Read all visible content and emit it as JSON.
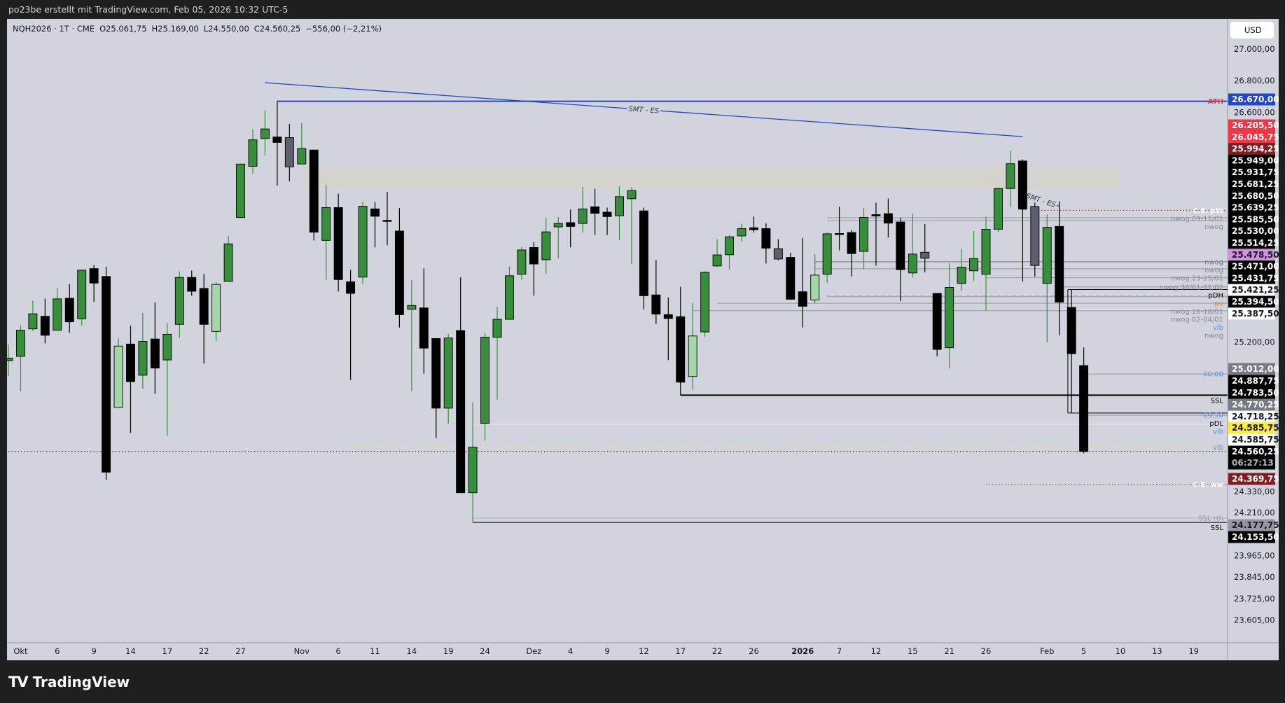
{
  "header": {
    "credit": "po23be erstellt mit TradingView.com, Feb 05, 2026 10:32 UTC-5"
  },
  "legend": {
    "symbol": "NQH2026 · 1T · CME",
    "open": "O25.061,75",
    "high": "H25.169,00",
    "low": "L24.550,00",
    "close": "C24.560,25",
    "change": "−556,00 (−2,21%)"
  },
  "price_axis": {
    "currency": "USD",
    "ticks": [
      {
        "label": "27.000,00",
        "price": 27000
      },
      {
        "label": "26.800,00",
        "price": 26800
      },
      {
        "label": "26.600,00",
        "price": 26600
      },
      {
        "label": "25.200,00",
        "price": 25200
      },
      {
        "label": "24.330,00",
        "price": 24330
      },
      {
        "label": "24.210,00",
        "price": 24210
      },
      {
        "label": "23.965,00",
        "price": 23965
      },
      {
        "label": "23.845,00",
        "price": 23845
      },
      {
        "label": "23.725,00",
        "price": 23725
      },
      {
        "label": "23.605,00",
        "price": 23605
      }
    ],
    "tags": [
      {
        "label": "26.670,00",
        "bg": "#2447c8",
        "fg": "#ffffff"
      },
      {
        "label": "26.205,50",
        "bg": "#f23645",
        "fg": "#ffffff"
      },
      {
        "label": "26.045,75",
        "bg": "#f23645",
        "fg": "#ffffff"
      },
      {
        "label": "25.994,25",
        "bg": "#7f1d22",
        "fg": "#ffffff"
      },
      {
        "label": "25.949,00",
        "bg": "#000000",
        "fg": "#ffffff"
      },
      {
        "label": "25.931,75",
        "bg": "#000000",
        "fg": "#ffffff"
      },
      {
        "label": "25.681,25",
        "bg": "#000000",
        "fg": "#ffffff"
      },
      {
        "label": "25.680,50",
        "bg": "#000000",
        "fg": "#ffffff"
      },
      {
        "label": "25.639,25",
        "bg": "#000000",
        "fg": "#ffffff"
      },
      {
        "label": "25.585,50",
        "bg": "#000000",
        "fg": "#ffffff"
      },
      {
        "label": "25.530,00",
        "bg": "#000000",
        "fg": "#ffffff"
      },
      {
        "label": "25.514,25",
        "bg": "#000000",
        "fg": "#ffffff"
      },
      {
        "label": "25.478,50",
        "bg": "#ce93d8",
        "fg": "#131722"
      },
      {
        "label": "25.471,00",
        "bg": "#000000",
        "fg": "#ffffff"
      },
      {
        "label": "25.431,75",
        "bg": "#000000",
        "fg": "#ffffff"
      },
      {
        "label": "25.421,25",
        "bg": "#ffffff",
        "fg": "#131722"
      },
      {
        "label": "25.394,50",
        "bg": "#000000",
        "fg": "#ffffff"
      },
      {
        "label": "25.387,50",
        "bg": "#ffffff",
        "fg": "#131722"
      },
      {
        "label": "25.012,00",
        "bg": "#787b86",
        "fg": "#ffffff"
      },
      {
        "label": "24.887,75",
        "bg": "#000000",
        "fg": "#ffffff"
      },
      {
        "label": "24.783,50",
        "bg": "#000000",
        "fg": "#ffffff"
      },
      {
        "label": "24.770,25",
        "bg": "#787b86",
        "fg": "#ffffff"
      },
      {
        "label": "24.718,25",
        "bg": "#ffffff",
        "fg": "#131722"
      },
      {
        "label": "24.585,75",
        "bg": "#ffeb3b",
        "fg": "#131722"
      },
      {
        "label": "24.585,75",
        "bg": "#ffffff",
        "fg": "#131722"
      },
      {
        "label": "24.560,25",
        "bg": "#000000",
        "fg": "#ffffff"
      },
      {
        "label": "24.369,75",
        "bg": "#7f1d22",
        "fg": "#ffffff"
      },
      {
        "label": "24.177,75",
        "bg": "#9598a1",
        "fg": "#131722"
      },
      {
        "label": "24.153,50",
        "bg": "#000000",
        "fg": "#ffffff"
      }
    ],
    "countdown": "06:27:13"
  },
  "time_axis": {
    "ticks": [
      {
        "label": "Okt",
        "bar": 1
      },
      {
        "label": "6",
        "bar": 4
      },
      {
        "label": "9",
        "bar": 7
      },
      {
        "label": "14",
        "bar": 10
      },
      {
        "label": "17",
        "bar": 13
      },
      {
        "label": "22",
        "bar": 16
      },
      {
        "label": "27",
        "bar": 19
      },
      {
        "label": "Nov",
        "bar": 24
      },
      {
        "label": "6",
        "bar": 27
      },
      {
        "label": "11",
        "bar": 30
      },
      {
        "label": "14",
        "bar": 33
      },
      {
        "label": "19",
        "bar": 36
      },
      {
        "label": "24",
        "bar": 39
      },
      {
        "label": "Dez",
        "bar": 43
      },
      {
        "label": "4",
        "bar": 46
      },
      {
        "label": "9",
        "bar": 49
      },
      {
        "label": "12",
        "bar": 52
      },
      {
        "label": "17",
        "bar": 55
      },
      {
        "label": "22",
        "bar": 58
      },
      {
        "label": "26",
        "bar": 61
      },
      {
        "label": "2026",
        "bar": 65
      },
      {
        "label": "7",
        "bar": 68
      },
      {
        "label": "12",
        "bar": 71
      },
      {
        "label": "15",
        "bar": 74
      },
      {
        "label": "21",
        "bar": 77
      },
      {
        "label": "26",
        "bar": 80
      },
      {
        "label": "Feb",
        "bar": 85
      },
      {
        "label": "5",
        "bar": 88
      },
      {
        "label": "10",
        "bar": 91
      },
      {
        "label": "13",
        "bar": 94
      },
      {
        "label": "19",
        "bar": 97
      }
    ]
  },
  "chart_data": {
    "type": "candlestick",
    "y_scale": "log",
    "ylim": [
      23530,
      27080
    ],
    "grid": false,
    "colors": {
      "up": "#388e3c",
      "down": "#000000",
      "light": "#a5d6a7",
      "gray": "#5d606b",
      "background": "#d1d4dc"
    },
    "light_bars": [
      9,
      17,
      56,
      66
    ],
    "gray_bars": [
      23,
      63,
      75,
      84
    ],
    "ohlc": [
      [
        25091,
        25186,
        25000,
        25106
      ],
      [
        25116,
        25301,
        24910,
        25271
      ],
      [
        25279,
        25446,
        25267,
        25369
      ],
      [
        25354,
        25460,
        25193,
        25241
      ],
      [
        25271,
        25522,
        25271,
        25458
      ],
      [
        25462,
        25547,
        25256,
        25321
      ],
      [
        25339,
        25635,
        25298,
        25631
      ],
      [
        25640,
        25661,
        25441,
        25553
      ],
      [
        25593,
        25652,
        24394,
        24441
      ],
      [
        24816,
        25223,
        24816,
        25177
      ],
      [
        25189,
        25298,
        24668,
        24967
      ],
      [
        25005,
        25375,
        24925,
        25205
      ],
      [
        25219,
        25438,
        24895,
        25047
      ],
      [
        25095,
        25315,
        24652,
        25247
      ],
      [
        25306,
        25623,
        25225,
        25587
      ],
      [
        25587,
        25628,
        25477,
        25504
      ],
      [
        25521,
        25607,
        25073,
        25306
      ],
      [
        25264,
        25560,
        25208,
        25545
      ],
      [
        25563,
        25838,
        25563,
        25790
      ],
      [
        25950,
        26279,
        25950,
        26279
      ],
      [
        26265,
        26494,
        26219,
        26429
      ],
      [
        26437,
        26613,
        26332,
        26497
      ],
      [
        26447,
        26670,
        26147,
        26413
      ],
      [
        26443,
        26529,
        26172,
        26261
      ],
      [
        26279,
        26534,
        26279,
        26375
      ],
      [
        26366,
        26366,
        25811,
        25861
      ],
      [
        25811,
        26151,
        25574,
        26011
      ],
      [
        26011,
        26096,
        25502,
        25574
      ],
      [
        25561,
        25633,
        24977,
        25491
      ],
      [
        25589,
        26046,
        25549,
        26019
      ],
      [
        26003,
        26046,
        25769,
        25958
      ],
      [
        25933,
        26108,
        25781,
        25930
      ],
      [
        25868,
        26008,
        25287,
        25364
      ],
      [
        25396,
        25572,
        24912,
        25419
      ],
      [
        25404,
        25641,
        25014,
        25165
      ],
      [
        25222,
        25222,
        24638,
        24812
      ],
      [
        24812,
        25249,
        24722,
        25225
      ],
      [
        25269,
        25589,
        24323,
        24323
      ],
      [
        24323,
        24847,
        24153.5,
        24585
      ],
      [
        24723,
        25257,
        24622,
        25230
      ],
      [
        25229,
        25409,
        24862,
        25336
      ],
      [
        25336,
        25652,
        25336,
        25597
      ],
      [
        25606,
        25771,
        25574,
        25753
      ],
      [
        25768,
        25801,
        25477,
        25668
      ],
      [
        25694,
        25948,
        25609,
        25863
      ],
      [
        25893,
        25953,
        25701,
        25914
      ],
      [
        25919,
        25999,
        25769,
        25896
      ],
      [
        25914,
        26138,
        25858,
        26003
      ],
      [
        26016,
        26126,
        25844,
        25976
      ],
      [
        25983,
        26011,
        25844,
        25956
      ],
      [
        25961,
        26143,
        25811,
        26078
      ],
      [
        26065,
        26135,
        25668,
        26116
      ],
      [
        25991,
        26011,
        25394,
        25477
      ],
      [
        25482,
        25691,
        25309,
        25367
      ],
      [
        25364,
        25467,
        25094,
        25341
      ],
      [
        25352,
        25531,
        24887.75,
        24964
      ],
      [
        24997,
        25434,
        24917,
        25237
      ],
      [
        25261,
        25624,
        25232,
        25618
      ],
      [
        25656,
        25818,
        25651,
        25723
      ],
      [
        25724,
        25843,
        25634,
        25833
      ],
      [
        25838,
        25914,
        25803,
        25883
      ],
      [
        25888,
        25956,
        25858,
        25876
      ],
      [
        25883,
        25914,
        25671,
        25764
      ],
      [
        25761,
        25818,
        25691,
        25698
      ],
      [
        25708,
        25736,
        25452,
        25456
      ],
      [
        25501,
        25826,
        25287,
        25414
      ],
      [
        25452,
        25729,
        25431,
        25601
      ],
      [
        25606,
        25859,
        25554,
        25851
      ],
      [
        25853,
        26016,
        25751,
        25850
      ],
      [
        25859,
        25873,
        25591,
        25731
      ],
      [
        25744,
        26008,
        25637,
        25951
      ],
      [
        25968,
        26041,
        25659,
        25960
      ],
      [
        25974,
        26066,
        25828,
        25916
      ],
      [
        25923,
        25948,
        25444,
        25634
      ],
      [
        25614,
        25974,
        25587,
        25728
      ],
      [
        25739,
        25911,
        25618,
        25703
      ],
      [
        25491,
        25491,
        25116,
        25157
      ],
      [
        25167,
        25674,
        25044,
        25527
      ],
      [
        25551,
        25761,
        25507,
        25649
      ],
      [
        25627,
        25868,
        25567,
        25701
      ],
      [
        25606,
        25956,
        25389,
        25878
      ],
      [
        25879,
        26133,
        25861,
        26128
      ],
      [
        26128,
        26361,
        26013,
        26281
      ],
      [
        26298,
        26308,
        25562,
        26001
      ],
      [
        26018,
        26041,
        25591,
        25659
      ],
      [
        25551,
        25968,
        25199,
        25891
      ],
      [
        25896,
        26048,
        25241,
        25439
      ],
      [
        25407,
        25514.25,
        24783.5,
        25132
      ],
      [
        25061.75,
        25169,
        24550,
        24560.25
      ]
    ],
    "zones": [
      {
        "from_bar": 24.1,
        "to_bar": 91,
        "top": 26259,
        "bottom": 26124,
        "color": "#d6d3ce"
      }
    ],
    "trendlines": [
      {
        "label": "SMT - ES",
        "from": [
          21,
          26787
        ],
        "to": [
          83,
          26449
        ],
        "color": "#2447c8"
      },
      {
        "label": "SMT - ES",
        "from": [
          83,
          26094
        ],
        "to": [
          86,
          26019
        ],
        "color": "#2447c8"
      }
    ],
    "connectors": [
      {
        "bar": 86.7,
        "top": 25514.25,
        "bottom": 24783.5,
        "color": "#000000"
      }
    ],
    "lines": [
      {
        "label": "ATH",
        "price": 26670,
        "from_bar": 22,
        "color": "#2447c8",
        "style": "solid",
        "label_color": "#f23645"
      },
      {
        "label": "C.E. pW",
        "price": 25994.25,
        "from_bar": 84,
        "color": "#8b1a1a",
        "style": "dotted",
        "label_color": "#ffffff"
      },
      {
        "label": "nwog 09-11/01",
        "price": 25949,
        "from_bar": 67,
        "color": "#9598a1",
        "style": "solid",
        "label_color": "#868993"
      },
      {
        "label": "nwog",
        "price": 25931.75,
        "from_bar": 67,
        "color": "#9598a1",
        "style": "solid",
        "label_color": "#868993"
      },
      {
        "label": "nwog",
        "price": 25681.25,
        "from_bar": 66,
        "color": "#787b86",
        "style": "solid",
        "label_color": "#787b86"
      },
      {
        "label": "nwog",
        "price": 25639.25,
        "from_bar": 66,
        "color": "#9598a1",
        "style": "solid",
        "label_color": "#868993"
      },
      {
        "label": "nwog 23-25/01",
        "price": 25585.5,
        "from_bar": 80,
        "color": "#9598a1",
        "style": "solid",
        "label_color": "#868993"
      },
      {
        "label": "nwog 30/01-01/02",
        "price": 25530,
        "from_bar": 86,
        "color": "#9598a1",
        "style": "solid",
        "label_color": "#868993"
      },
      {
        "label": "pDH",
        "price": 25514.25,
        "from_bar": 86.7,
        "color": "#000000",
        "style": "solid",
        "label_color": "#000000"
      },
      {
        "label": "po",
        "price": 25478.5,
        "from_bar": 67,
        "color": "#ce93d8",
        "style": "dashed",
        "label_color": "#f57c00"
      },
      {
        "label": "nwog 16-18/01",
        "price": 25471,
        "from_bar": 67,
        "color": "#9598a1",
        "style": "solid",
        "label_color": "#868993"
      },
      {
        "label": "nwog 02-04/01",
        "price": 25431.75,
        "from_bar": 58,
        "color": "#9598a1",
        "style": "solid",
        "label_color": "#868993"
      },
      {
        "label": "vib",
        "price": 25394.5,
        "from_bar": 86,
        "color": "#e8eaf0",
        "style": "solid",
        "label_color": "#5b8def"
      },
      {
        "label": "nwog",
        "price": 25387.5,
        "from_bar": 56,
        "color": "#9598a1",
        "style": "solid",
        "label_color": "#868993"
      },
      {
        "label": "00:00",
        "price": 25012,
        "from_bar": 88,
        "color": "#9598a1",
        "style": "solid",
        "label_color": "#5b8def"
      },
      {
        "label": "SSL",
        "price": 24887.75,
        "from_bar": 55,
        "color": "#000000",
        "style": "thick",
        "label_color": "#000000"
      },
      {
        "label": "pDL",
        "price": 24783.5,
        "from_bar": 86.7,
        "color": "#000000",
        "style": "solid",
        "label_color": "#000000"
      },
      {
        "label": "09:30",
        "price": 24770.25,
        "from_bar": 88,
        "color": "#9598a1",
        "style": "solid",
        "label_color": "#5b8def"
      },
      {
        "label": "vib",
        "price": 24718.25,
        "from_bar": 38,
        "color": "#e8eaf0",
        "style": "solid",
        "label_color": "#5b8def"
      },
      {
        "label": "vib",
        "price": 24585.75,
        "from_bar": 28,
        "color": "#f5e663",
        "style": "dotted",
        "label_color": "#5b8def"
      },
      {
        "label": "",
        "price": 24560.25,
        "from_bar": 0,
        "color": "#131722",
        "style": "dotted",
        "label_color": "#131722"
      },
      {
        "label": "C.E. ww",
        "price": 24369.75,
        "from_bar": 80,
        "color": "#8b1a1a",
        "style": "dotted",
        "label_color": "#ffffff"
      },
      {
        "label": "SSL rth",
        "price": 24177.75,
        "from_bar": 38,
        "color": "#b2b5be",
        "style": "solid",
        "label_color": "#9598a1"
      },
      {
        "label": "SSL",
        "price": 24153.5,
        "from_bar": 38,
        "color": "#000000",
        "style": "solid",
        "label_color": "#000000"
      }
    ]
  },
  "footer": {
    "brand": "TradingView",
    "mark": "17"
  }
}
